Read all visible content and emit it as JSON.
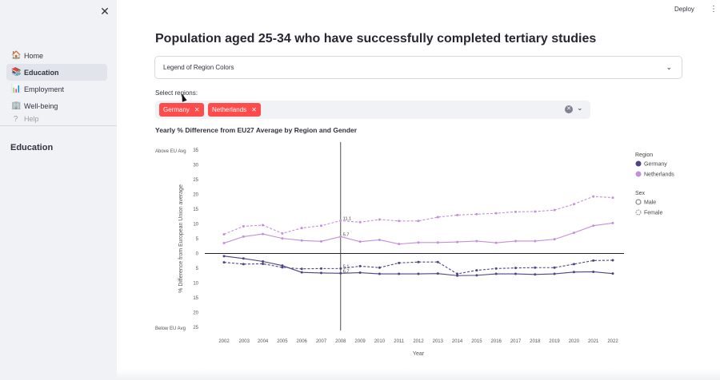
{
  "app": {
    "deploy_label": "Deploy",
    "menu_icon": "vertical-dots-icon"
  },
  "sidebar": {
    "close_icon": "✕",
    "items": [
      {
        "label": "Home",
        "icon": "house-icon",
        "glyph": "🏠",
        "active": false
      },
      {
        "label": "Education",
        "icon": "books-icon",
        "glyph": "📚",
        "active": true
      },
      {
        "label": "Employment",
        "icon": "bar-chart-icon",
        "glyph": "📊",
        "active": false
      },
      {
        "label": "Well-being",
        "icon": "building-icon",
        "glyph": "🏢",
        "active": false
      },
      {
        "label": "Help",
        "icon": "question-icon",
        "glyph": "?",
        "active": false
      }
    ],
    "section_heading": "Education"
  },
  "main": {
    "title": "Population aged 25-34 who have successfully completed tertiary studies",
    "expander_label": "Legend of Region Colors",
    "select_label": "Select regions:",
    "selected_regions": [
      "Germany",
      "Netherlands"
    ],
    "chart_title": "Yearly % Difference from EU27 Average by Region and Gender"
  },
  "chart_data": {
    "type": "line",
    "xlabel": "Year",
    "ylabel": "% Difference from European Union average",
    "x": [
      2002,
      2003,
      2004,
      2005,
      2006,
      2007,
      2008,
      2009,
      2010,
      2011,
      2012,
      2013,
      2014,
      2015,
      2016,
      2017,
      2018,
      2019,
      2020,
      2021,
      2022
    ],
    "yticks": [
      35,
      30,
      25,
      20,
      15,
      10,
      5,
      0,
      -5,
      -10,
      -15,
      -20,
      -25
    ],
    "ytick_labels": [
      "35",
      "30",
      "25",
      "20",
      "15",
      "10",
      "5",
      "0",
      "5",
      "10",
      "15",
      "20",
      "25"
    ],
    "ylim": [
      -25,
      35
    ],
    "above_label": "Above EU Avg",
    "below_label": "Below EU Avg",
    "vline_x": 2008,
    "legend": {
      "region_title": "Region",
      "regions": [
        {
          "name": "Germany",
          "color": "#4b4582"
        },
        {
          "name": "Netherlands",
          "color": "#c38fdb"
        }
      ],
      "sex_title": "Sex",
      "sexes": [
        {
          "name": "Male",
          "style": "solid"
        },
        {
          "name": "Female",
          "style": "dashed"
        }
      ]
    },
    "series": [
      {
        "name": "Netherlands Female",
        "region": "Netherlands",
        "sex": "Female",
        "color": "#c38fdb",
        "dashed": true,
        "values": [
          6.5,
          9.2,
          9.6,
          6.8,
          8.6,
          9.4,
          11.1,
          10.6,
          11.5,
          11.0,
          11.0,
          12.3,
          13.0,
          13.3,
          13.6,
          14.1,
          14.2,
          14.7,
          16.7,
          19.3,
          18.9
        ]
      },
      {
        "name": "Netherlands Male",
        "region": "Netherlands",
        "sex": "Male",
        "color": "#c38fdb",
        "dashed": false,
        "values": [
          3.5,
          5.7,
          6.6,
          5.1,
          4.4,
          4.1,
          5.7,
          4.0,
          4.6,
          3.2,
          3.7,
          3.7,
          3.9,
          4.2,
          3.6,
          4.2,
          4.2,
          4.8,
          7.0,
          9.4,
          10.3
        ]
      },
      {
        "name": "Germany Female",
        "region": "Germany",
        "sex": "Female",
        "color": "#4b4582",
        "dashed": true,
        "values": [
          -3.0,
          -3.6,
          -3.5,
          -4.7,
          -5.2,
          -5.1,
          -5.1,
          -4.3,
          -4.8,
          -3.2,
          -2.9,
          -2.9,
          -6.9,
          -5.7,
          -5.1,
          -4.9,
          -4.8,
          -4.8,
          -3.6,
          -2.4,
          -2.3
        ]
      },
      {
        "name": "Germany Male",
        "region": "Germany",
        "sex": "Male",
        "color": "#4b4582",
        "dashed": false,
        "values": [
          -0.9,
          -1.7,
          -2.7,
          -4.1,
          -6.4,
          -6.6,
          -6.7,
          -6.5,
          -6.9,
          -6.9,
          -6.9,
          -6.8,
          -7.5,
          -7.4,
          -6.9,
          -6.9,
          -7.1,
          -6.9,
          -6.3,
          -6.2,
          -6.8
        ]
      }
    ],
    "annotations": [
      {
        "label": "11.1",
        "x": 2008,
        "y": 11.1
      },
      {
        "label": "5.7",
        "x": 2008,
        "y": 5.7
      },
      {
        "label": "5.1",
        "x": 2008,
        "y": -5.1
      },
      {
        "label": "6.7",
        "x": 2008,
        "y": -6.7
      }
    ]
  }
}
